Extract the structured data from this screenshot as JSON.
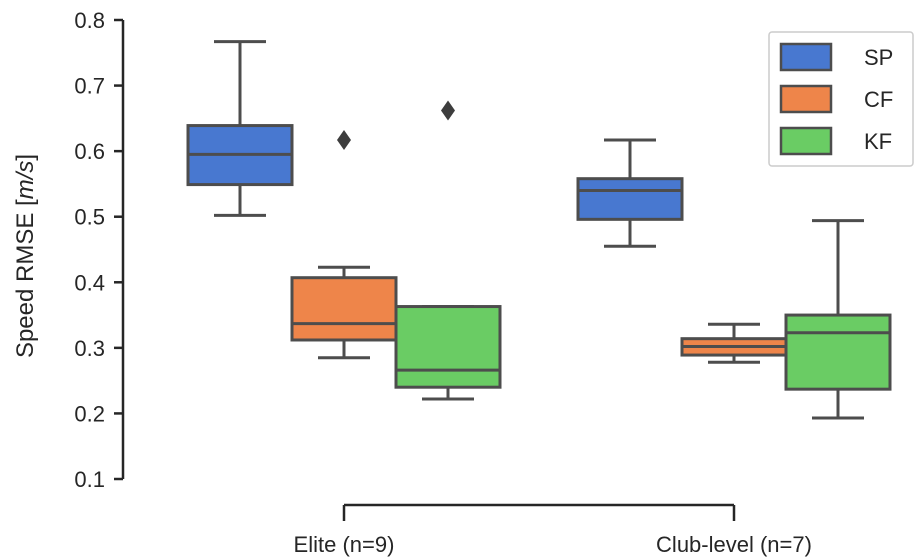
{
  "chart_data": {
    "type": "box",
    "title": "",
    "xlabel": "",
    "ylabel": "Speed RMSE [",
    "ylabel_unit": "m/s",
    "ylabel_close": "]",
    "ylim": [
      0.1,
      0.8
    ],
    "yticks": [
      0.1,
      0.2,
      0.3,
      0.4,
      0.5,
      0.6,
      0.7,
      0.8
    ],
    "grid": false,
    "legend_position": "top-right",
    "categories": [
      "Elite (n=9)",
      "Club-level (n=7)"
    ],
    "series": [
      {
        "name": "SP",
        "color": "#4878d0",
        "boxes": [
          {
            "whisker_low": 0.502,
            "q1": 0.549,
            "median": 0.595,
            "q3": 0.639,
            "whisker_high": 0.767,
            "outliers": []
          },
          {
            "whisker_low": 0.455,
            "q1": 0.496,
            "median": 0.54,
            "q3": 0.558,
            "whisker_high": 0.617,
            "outliers": []
          }
        ]
      },
      {
        "name": "CF",
        "color": "#ee854a",
        "boxes": [
          {
            "whisker_low": 0.285,
            "q1": 0.312,
            "median": 0.337,
            "q3": 0.407,
            "whisker_high": 0.423,
            "outliers": [
              0.617
            ]
          },
          {
            "whisker_low": 0.278,
            "q1": 0.289,
            "median": 0.302,
            "q3": 0.314,
            "whisker_high": 0.336,
            "outliers": []
          }
        ]
      },
      {
        "name": "KF",
        "color": "#6acc64",
        "boxes": [
          {
            "whisker_low": 0.222,
            "q1": 0.24,
            "median": 0.266,
            "q3": 0.363,
            "whisker_high": 0.363,
            "outliers": [
              0.662
            ]
          },
          {
            "whisker_low": 0.193,
            "q1": 0.237,
            "median": 0.323,
            "q3": 0.35,
            "whisker_high": 0.494,
            "outliers": []
          }
        ]
      }
    ]
  }
}
